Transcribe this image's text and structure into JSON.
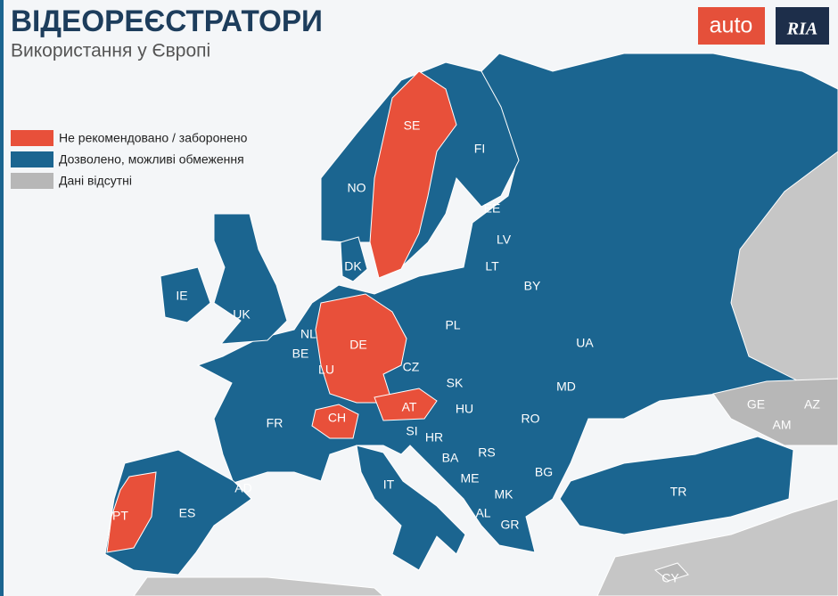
{
  "header": {
    "title": "ВІДЕОРЕЄСТРАТОРИ",
    "subtitle": "Використання у Європі"
  },
  "logo": {
    "left": "auto",
    "right": "RIA"
  },
  "legend": [
    {
      "label": "Не рекомендовано / заборонено",
      "color": "#e8503a"
    },
    {
      "label": "Дозволено, можливі обмеження",
      "color": "#1b6590"
    },
    {
      "label": "Дані відсутні",
      "color": "#b7b7b7"
    }
  ],
  "countries": [
    {
      "label": "SE",
      "status": 0
    },
    {
      "label": "FI",
      "status": 1
    },
    {
      "label": "NO",
      "status": 1
    },
    {
      "label": "EE",
      "status": 1
    },
    {
      "label": "LV",
      "status": 1
    },
    {
      "label": "LT",
      "status": 1
    },
    {
      "label": "DK",
      "status": 1
    },
    {
      "label": "BY",
      "status": 1
    },
    {
      "label": "IE",
      "status": 1
    },
    {
      "label": "UK",
      "status": 1
    },
    {
      "label": "PL",
      "status": 1
    },
    {
      "label": "NL",
      "status": 1
    },
    {
      "label": "DE",
      "status": 0
    },
    {
      "label": "UA",
      "status": 1
    },
    {
      "label": "BE",
      "status": 1
    },
    {
      "label": "LU",
      "status": 0
    },
    {
      "label": "CZ",
      "status": 1
    },
    {
      "label": "SK",
      "status": 1
    },
    {
      "label": "MD",
      "status": 1
    },
    {
      "label": "FR",
      "status": 1
    },
    {
      "label": "CH",
      "status": 0
    },
    {
      "label": "AT",
      "status": 0
    },
    {
      "label": "HU",
      "status": 1
    },
    {
      "label": "RO",
      "status": 1
    },
    {
      "label": "SI",
      "status": 1
    },
    {
      "label": "HR",
      "status": 1
    },
    {
      "label": "BA",
      "status": 1
    },
    {
      "label": "RS",
      "status": 1
    },
    {
      "label": "GE",
      "status": 2
    },
    {
      "label": "AZ",
      "status": 2
    },
    {
      "label": "AM",
      "status": 2
    },
    {
      "label": "AD",
      "status": 1
    },
    {
      "label": "IT",
      "status": 1
    },
    {
      "label": "ME",
      "status": 1
    },
    {
      "label": "BG",
      "status": 1
    },
    {
      "label": "MK",
      "status": 1
    },
    {
      "label": "ES",
      "status": 1
    },
    {
      "label": "TR",
      "status": 1
    },
    {
      "label": "AL",
      "status": 1
    },
    {
      "label": "PT",
      "status": 0
    },
    {
      "label": "GR",
      "status": 1
    },
    {
      "label": "CY",
      "status": 2
    }
  ]
}
